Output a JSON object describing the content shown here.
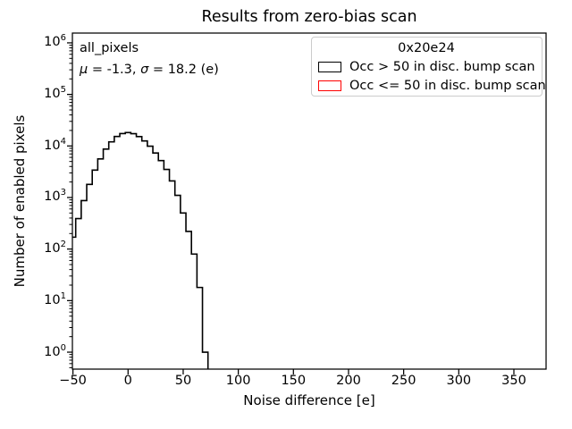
{
  "title": "Results from zero-bias scan",
  "axes": {
    "x": {
      "label": "Noise difference [e]",
      "ticks": [
        -50,
        0,
        50,
        100,
        150,
        200,
        250,
        300,
        350
      ],
      "min": -50.5,
      "max": 379.2
    },
    "y": {
      "label": "Number of enabled pixels",
      "scale": "log",
      "tick_exponents": [
        0,
        1,
        2,
        3,
        4,
        5,
        6
      ],
      "min": 0.469,
      "max": 1548000
    }
  },
  "annotation": {
    "dataset": "all_pixels",
    "mu": "-1.3",
    "sigma": "18.2",
    "stats_parts": [
      {
        "t": "μ",
        "i": true
      },
      {
        "t": " = -1.3, ",
        "i": false
      },
      {
        "t": "σ",
        "i": true
      },
      {
        "t": " = 18.2 (e)",
        "i": false
      }
    ]
  },
  "legend": {
    "title": "0x20e24",
    "entries": [
      {
        "label": "Occ > 50 in disc. bump scan",
        "color": "#000000"
      },
      {
        "label": "Occ <= 50 in disc. bump scan",
        "color": "#ff0000"
      }
    ]
  },
  "chart_data": {
    "type": "histogram-step",
    "title": "Results from zero-bias scan",
    "xlabel": "Noise difference [e]",
    "ylabel": "Number of enabled pixels",
    "yscale": "log",
    "xlim": [
      -50.5,
      379.2
    ],
    "ylim": [
      0.469,
      1548000
    ],
    "bin_width": 5,
    "series": [
      {
        "name": "Occ > 50 in disc. bump scan",
        "color": "#000000",
        "bin_centers": [
          -50,
          -45,
          -40,
          -35,
          -30,
          -25,
          -20,
          -15,
          -10,
          -5,
          0,
          5,
          10,
          15,
          20,
          25,
          30,
          35,
          40,
          45,
          50,
          55,
          60,
          65,
          70
        ],
        "counts": [
          170,
          390,
          870,
          1800,
          3400,
          5600,
          8700,
          12000,
          15300,
          17400,
          18200,
          17300,
          15200,
          12500,
          9900,
          7300,
          5200,
          3500,
          2100,
          1100,
          500,
          220,
          80,
          18,
          1
        ]
      },
      {
        "name": "Occ <= 50 in disc. bump scan",
        "color": "#ff0000",
        "bin_centers": [],
        "counts": []
      }
    ]
  }
}
